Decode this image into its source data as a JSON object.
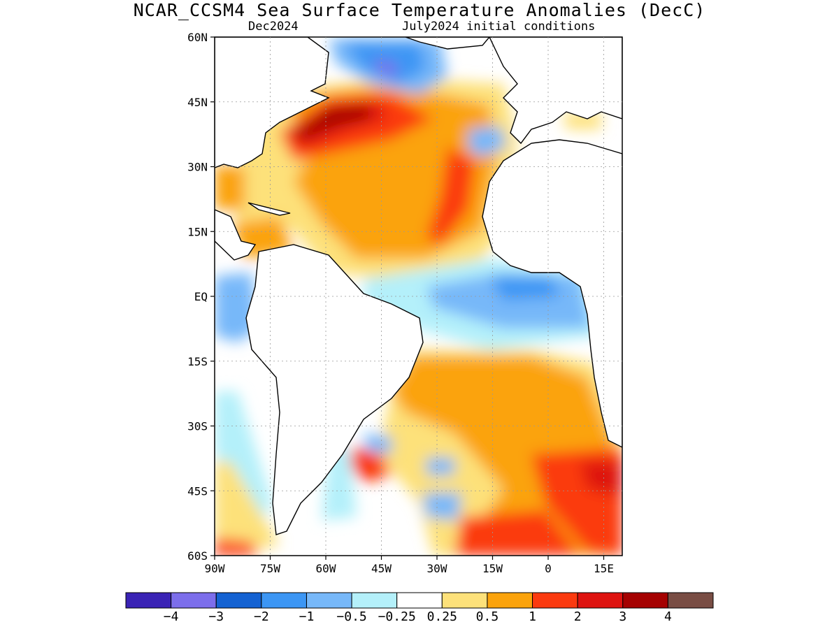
{
  "title": "NCAR_CCSM4 Sea Surface Temperature Anomalies (DecC)",
  "subtitle_left": "Dec2024",
  "subtitle_right": "July2024 initial conditions",
  "map": {
    "lon_range": [
      -90,
      20
    ],
    "lat_range": [
      -60,
      60
    ],
    "lat_ticks": [
      "60N",
      "45N",
      "30N",
      "15N",
      "EQ",
      "15S",
      "30S",
      "45S",
      "60S"
    ],
    "lon_ticks": [
      "90W",
      "75W",
      "60W",
      "45W",
      "30W",
      "15W",
      "0",
      "15E"
    ],
    "grid": true
  },
  "colorbar": {
    "colors": [
      "#3a23b5",
      "#7c6eeb",
      "#1462d2",
      "#3c96f4",
      "#77b8f9",
      "#b4f0fa",
      "#ffffff",
      "#fde17a",
      "#fba30c",
      "#fb3a0f",
      "#de1310",
      "#a50101",
      "#794d44"
    ],
    "labels": [
      "−4",
      "−3",
      "−2",
      "−1",
      "−0.5",
      "−0.25",
      "0.25",
      "0.5",
      "1",
      "2",
      "3",
      "4"
    ]
  }
}
